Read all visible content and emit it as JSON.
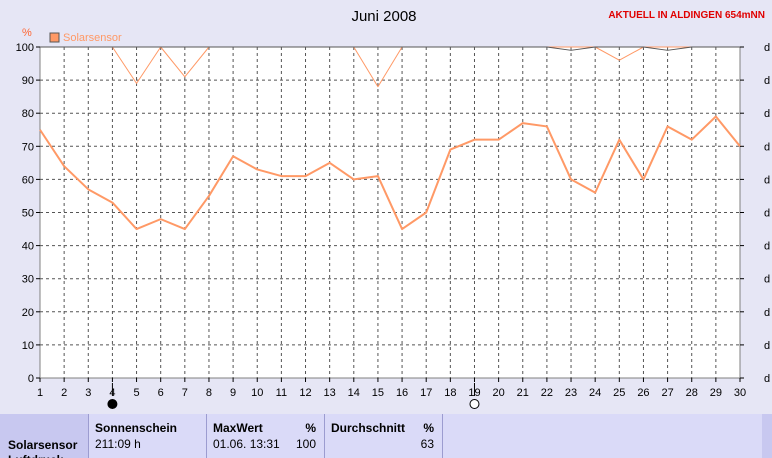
{
  "chart_data": {
    "type": "line",
    "title": "Juni 2008",
    "station": "AKTUELL IN ALDINGEN 654mNN",
    "y_unit": "%",
    "right_axis_label": "d",
    "legend": [
      {
        "name": "Solarsensor",
        "color": "#ff9966"
      }
    ],
    "x": [
      1,
      2,
      3,
      4,
      5,
      6,
      7,
      8,
      9,
      10,
      11,
      12,
      13,
      14,
      15,
      16,
      17,
      18,
      19,
      20,
      21,
      22,
      23,
      24,
      25,
      26,
      27,
      28,
      29,
      30
    ],
    "xlim": [
      1,
      30
    ],
    "ylim": [
      0,
      100
    ],
    "y_ticks": [
      0,
      10,
      20,
      30,
      40,
      50,
      60,
      70,
      80,
      90,
      100
    ],
    "grid": true,
    "legend_position": "top-left",
    "series": [
      {
        "name": "Solarsensor",
        "role": "max",
        "color": "#ff9966",
        "values": [
          100,
          100,
          100,
          100,
          89,
          100,
          91,
          100,
          100,
          100,
          100,
          100,
          100,
          100,
          88,
          100,
          100,
          100,
          100,
          100,
          100,
          100,
          100,
          100,
          96,
          100,
          100,
          100,
          100,
          100
        ]
      },
      {
        "name": "Solarsensor",
        "role": "average",
        "color": "#ff9966",
        "values": [
          75,
          64,
          57,
          53,
          45,
          48,
          45,
          55,
          67,
          63,
          61,
          61,
          65,
          60,
          61,
          45,
          50,
          69,
          72,
          72,
          77,
          76,
          60,
          56,
          72,
          60,
          76,
          72,
          79,
          70
        ]
      },
      {
        "name": "",
        "role": "secondary",
        "color": "#555555",
        "values": [
          100,
          100,
          100,
          100,
          100,
          100,
          100,
          100,
          100,
          100,
          100,
          100,
          100,
          100,
          100,
          100,
          100,
          100,
          100,
          100,
          100,
          100,
          99,
          100,
          100,
          100,
          99,
          100,
          100,
          100
        ]
      }
    ],
    "moon_markers": [
      {
        "day": 4,
        "phase": "new-moon"
      },
      {
        "day": 19,
        "phase": "full-moon"
      }
    ]
  },
  "info_table": {
    "row_label": "Solarsensor",
    "row_label_next": "Luftdruck",
    "columns": [
      {
        "header": "Sonnenschein",
        "unit": "",
        "value_left": "211:09 h",
        "value_right": ""
      },
      {
        "header": "MaxWert",
        "unit": "%",
        "value_left": "01.06.  13:31",
        "value_right": "100"
      },
      {
        "header": "Durchschnitt",
        "unit": "%",
        "value_left": "",
        "value_right": "63"
      }
    ]
  }
}
